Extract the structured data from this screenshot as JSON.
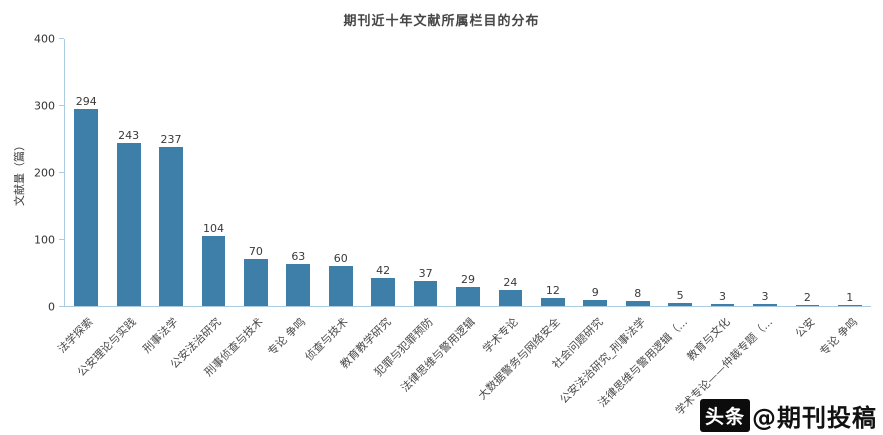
{
  "title": "期刊近十年文献所属栏目的分布",
  "ylabel": "文献量（篇）",
  "watermark": {
    "logo": "头条",
    "text": "@期刊投稿"
  },
  "colors": {
    "bar": "#3d7fa8",
    "axis": "#a9cce3",
    "title": "#454545"
  },
  "chart_data": {
    "type": "bar",
    "title": "期刊近十年文献所属栏目的分布",
    "xlabel": "",
    "ylabel": "文献量（篇）",
    "ylim": [
      0,
      400
    ],
    "yticks": [
      0,
      100,
      200,
      300,
      400
    ],
    "grid": false,
    "legend": false,
    "categories": [
      "法学探索",
      "公安理论与实践",
      "刑事法学",
      "公安法治研究",
      "刑事侦查与技术",
      "专论 争鸣",
      "侦查与技术",
      "教育教学研究",
      "犯罪与犯罪预防",
      "法律思维与警用逻辑",
      "学术专论",
      "大数据警务与网络安全",
      "社会问题研究",
      "公安法治研究_刑事法学",
      "法律思维与警用逻辑（...",
      "教育与文化",
      "学术专论——仲裁专题（...",
      "公安",
      "专论 争鸣"
    ],
    "values": [
      294,
      243,
      237,
      104,
      70,
      63,
      60,
      42,
      37,
      29,
      24,
      12,
      9,
      8,
      5,
      3,
      3,
      2,
      1
    ]
  }
}
